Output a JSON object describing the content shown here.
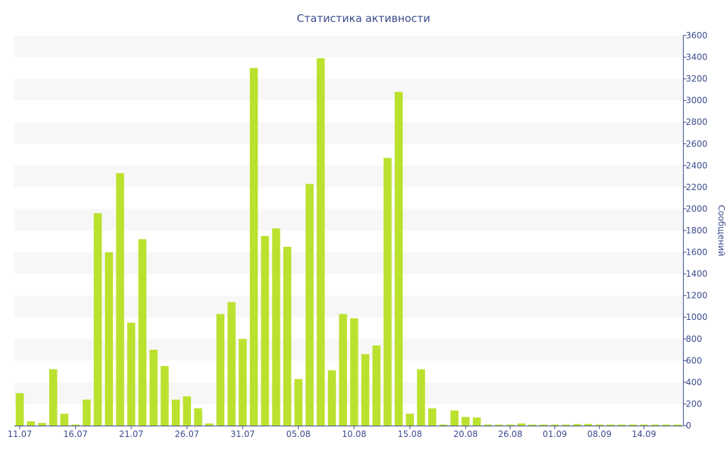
{
  "chart_data": {
    "type": "bar",
    "title": "Статистика активности",
    "ylabel": "Сообщений",
    "xlabel": "",
    "ylim": [
      0,
      3600
    ],
    "y_ticks": [
      0,
      200,
      400,
      600,
      800,
      1000,
      1200,
      1400,
      1600,
      1800,
      2000,
      2200,
      2400,
      2600,
      2800,
      3000,
      3200,
      3400,
      3600
    ],
    "y_axis_side": "right",
    "grid": "alternating horizontal bands",
    "x_tick_labels": [
      {
        "category": "11.07",
        "label": "11.07"
      },
      {
        "category": "16.07",
        "label": "16.07"
      },
      {
        "category": "21.07",
        "label": "21.07"
      },
      {
        "category": "26.07",
        "label": "26.07"
      },
      {
        "category": "31.07",
        "label": "31.07"
      },
      {
        "category": "05.08",
        "label": "05.08"
      },
      {
        "category": "10.08",
        "label": "10.08"
      },
      {
        "category": "15.08",
        "label": "15.08"
      },
      {
        "category": "20.08",
        "label": "20.08"
      },
      {
        "category": "26.08",
        "label": "26.08"
      },
      {
        "category": "01.09",
        "label": "01.09"
      },
      {
        "category": "08.09",
        "label": "08.09"
      },
      {
        "category": "14.09",
        "label": "14.09"
      }
    ],
    "categories": [
      "11.07",
      "12.07",
      "13.07",
      "14.07",
      "15.07",
      "16.07",
      "17.07",
      "18.07",
      "19.07",
      "20.07",
      "21.07",
      "22.07",
      "23.07",
      "24.07",
      "25.07",
      "26.07",
      "27.07",
      "28.07",
      "29.07",
      "30.07",
      "31.07",
      "01.08",
      "02.08",
      "03.08",
      "04.08",
      "05.08",
      "06.08",
      "07.08",
      "08.08",
      "09.08",
      "10.08",
      "11.08",
      "12.08",
      "13.08",
      "14.08",
      "15.08",
      "16.08",
      "17.08",
      "18.08",
      "19.08",
      "20.08",
      "21.08",
      "22.08",
      "24.08",
      "26.08",
      "27.08",
      "30.08",
      "31.08",
      "01.09",
      "03.09",
      "05.09",
      "06.09",
      "08.09",
      "09.09",
      "11.09",
      "13.09",
      "14.09",
      "16.09",
      "18.09",
      "20.09"
    ],
    "values": [
      300,
      40,
      25,
      520,
      110,
      10,
      240,
      1960,
      1600,
      2330,
      950,
      1720,
      700,
      550,
      240,
      270,
      160,
      20,
      1030,
      1140,
      800,
      3300,
      1750,
      1820,
      1650,
      430,
      2230,
      3390,
      510,
      1030,
      990,
      660,
      740,
      2470,
      3080,
      110,
      520,
      160,
      10,
      140,
      80,
      75,
      10,
      5,
      10,
      20,
      5,
      5,
      10,
      5,
      15,
      15,
      10,
      10,
      5,
      5,
      10,
      5,
      5,
      5
    ],
    "colors": {
      "bar": "#bbe12f",
      "band_light": "#f7f7f7",
      "band_white": "#ffffff",
      "text": "#3b4a8c",
      "axis": "#3b4a8c"
    }
  }
}
